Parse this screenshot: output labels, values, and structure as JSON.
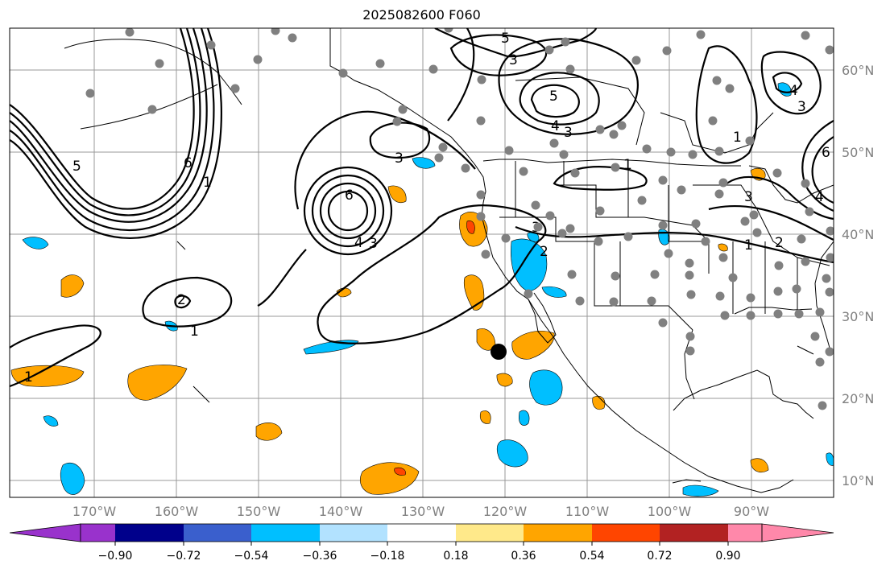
{
  "title": "2025082600 F060",
  "lat_labels": [
    "60°N",
    "50°N",
    "40°N",
    "30°N",
    "20°N",
    "10°N"
  ],
  "lon_labels": [
    "170°W",
    "160°W",
    "150°W",
    "140°W",
    "130°W",
    "120°W",
    "110°W",
    "100°W",
    "90°W"
  ],
  "colorbar": {
    "ticks": [
      "−0.90",
      "−0.72",
      "−0.54",
      "−0.36",
      "−0.18",
      "0.18",
      "0.36",
      "0.54",
      "0.72",
      "0.90"
    ],
    "colors": [
      "#9932cc",
      "#00008b",
      "#3a5fcd",
      "#00bfff",
      "#b2e2ff",
      "#ffffff",
      "#ffe98a",
      "#ffa500",
      "#ff4500",
      "#b22222",
      "#ff88aa"
    ]
  },
  "contour_labels": [
    "1",
    "2",
    "3",
    "4",
    "5",
    "6"
  ],
  "marker": "black-dot"
}
